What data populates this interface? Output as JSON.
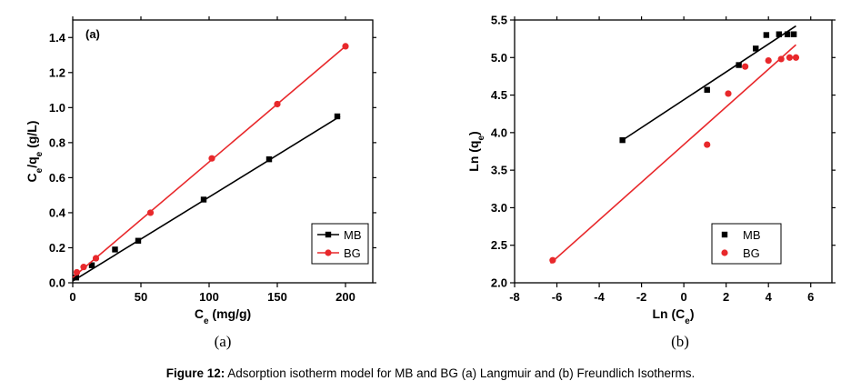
{
  "chart_data": [
    {
      "type": "line",
      "panel_label": "(a)",
      "xlabel_main": "C",
      "xlabel_sub": "e",
      "xlabel_unit": " (mg/g)",
      "ylabel_parts": [
        "C",
        "e",
        "/q",
        "e",
        " (g/L)"
      ],
      "xlim": [
        0,
        220
      ],
      "ylim": [
        0,
        1.5
      ],
      "xticks": [
        "0",
        "50",
        "100",
        "150",
        "200"
      ],
      "xtick_values": [
        0,
        50,
        100,
        150,
        200
      ],
      "yticks": [
        "0.0",
        "0.2",
        "0.4",
        "0.6",
        "0.8",
        "1.0",
        "1.2",
        "1.4"
      ],
      "ytick_values": [
        0,
        0.2,
        0.4,
        0.6,
        0.8,
        1.0,
        1.2,
        1.4
      ],
      "legend_position": "lower-right",
      "series": [
        {
          "name": "MB",
          "color": "#000000",
          "marker": "square",
          "x": [
            2.5,
            14,
            31,
            48,
            96,
            144,
            194
          ],
          "y": [
            0.03,
            0.1,
            0.19,
            0.24,
            0.475,
            0.705,
            0.95
          ],
          "fit": [
            [
              0,
              0.01
            ],
            [
              196,
              0.95
            ]
          ]
        },
        {
          "name": "BG",
          "color": "#e8282b",
          "marker": "circle",
          "x": [
            3,
            8,
            17,
            57,
            102,
            150,
            200
          ],
          "y": [
            0.06,
            0.09,
            0.14,
            0.4,
            0.71,
            1.02,
            1.35
          ],
          "fit": [
            [
              0,
              0.03
            ],
            [
              200,
              1.35
            ]
          ]
        }
      ]
    },
    {
      "type": "scatter",
      "panel_label": "",
      "xlabel_main": "Ln (C",
      "xlabel_sub": "e",
      "xlabel_unit": ")",
      "ylabel_parts": [
        "Ln (q",
        "e",
        ")"
      ],
      "xlim": [
        -8,
        7
      ],
      "ylim": [
        2.0,
        5.5
      ],
      "xticks": [
        "-8",
        "-6",
        "-4",
        "-2",
        "0",
        "2",
        "4",
        "6"
      ],
      "xtick_values": [
        -8,
        -6,
        -4,
        -2,
        0,
        2,
        4,
        6
      ],
      "yticks": [
        "2.0",
        "2.5",
        "3.0",
        "3.5",
        "4.0",
        "4.5",
        "5.0",
        "5.5"
      ],
      "ytick_values": [
        2.0,
        2.5,
        3.0,
        3.5,
        4.0,
        4.5,
        5.0,
        5.5
      ],
      "legend_position": "lower-right",
      "series": [
        {
          "name": "MB",
          "color": "#000000",
          "marker": "square",
          "x": [
            -2.9,
            1.1,
            2.6,
            3.4,
            3.9,
            4.5,
            4.9,
            5.2
          ],
          "y": [
            3.9,
            4.57,
            4.9,
            5.12,
            5.3,
            5.31,
            5.31,
            5.31
          ],
          "fit": [
            [
              -2.9,
              3.9
            ],
            [
              5.3,
              5.42
            ]
          ]
        },
        {
          "name": "BG",
          "color": "#e8282b",
          "marker": "circle",
          "x": [
            -6.2,
            1.1,
            2.1,
            2.9,
            4.0,
            4.6,
            5.0,
            5.3
          ],
          "y": [
            2.3,
            3.84,
            4.52,
            4.88,
            4.96,
            4.98,
            5.0,
            5.0
          ],
          "fit": [
            [
              -6.3,
              2.26
            ],
            [
              5.3,
              5.17
            ]
          ]
        }
      ]
    }
  ],
  "captions": {
    "a": "(a)",
    "b": "(b)",
    "figure_label": "Figure 12:",
    "figure_text": " Adsorption isotherm model for MB and BG (a) Langmuir and (b) Freundlich Isotherms."
  }
}
